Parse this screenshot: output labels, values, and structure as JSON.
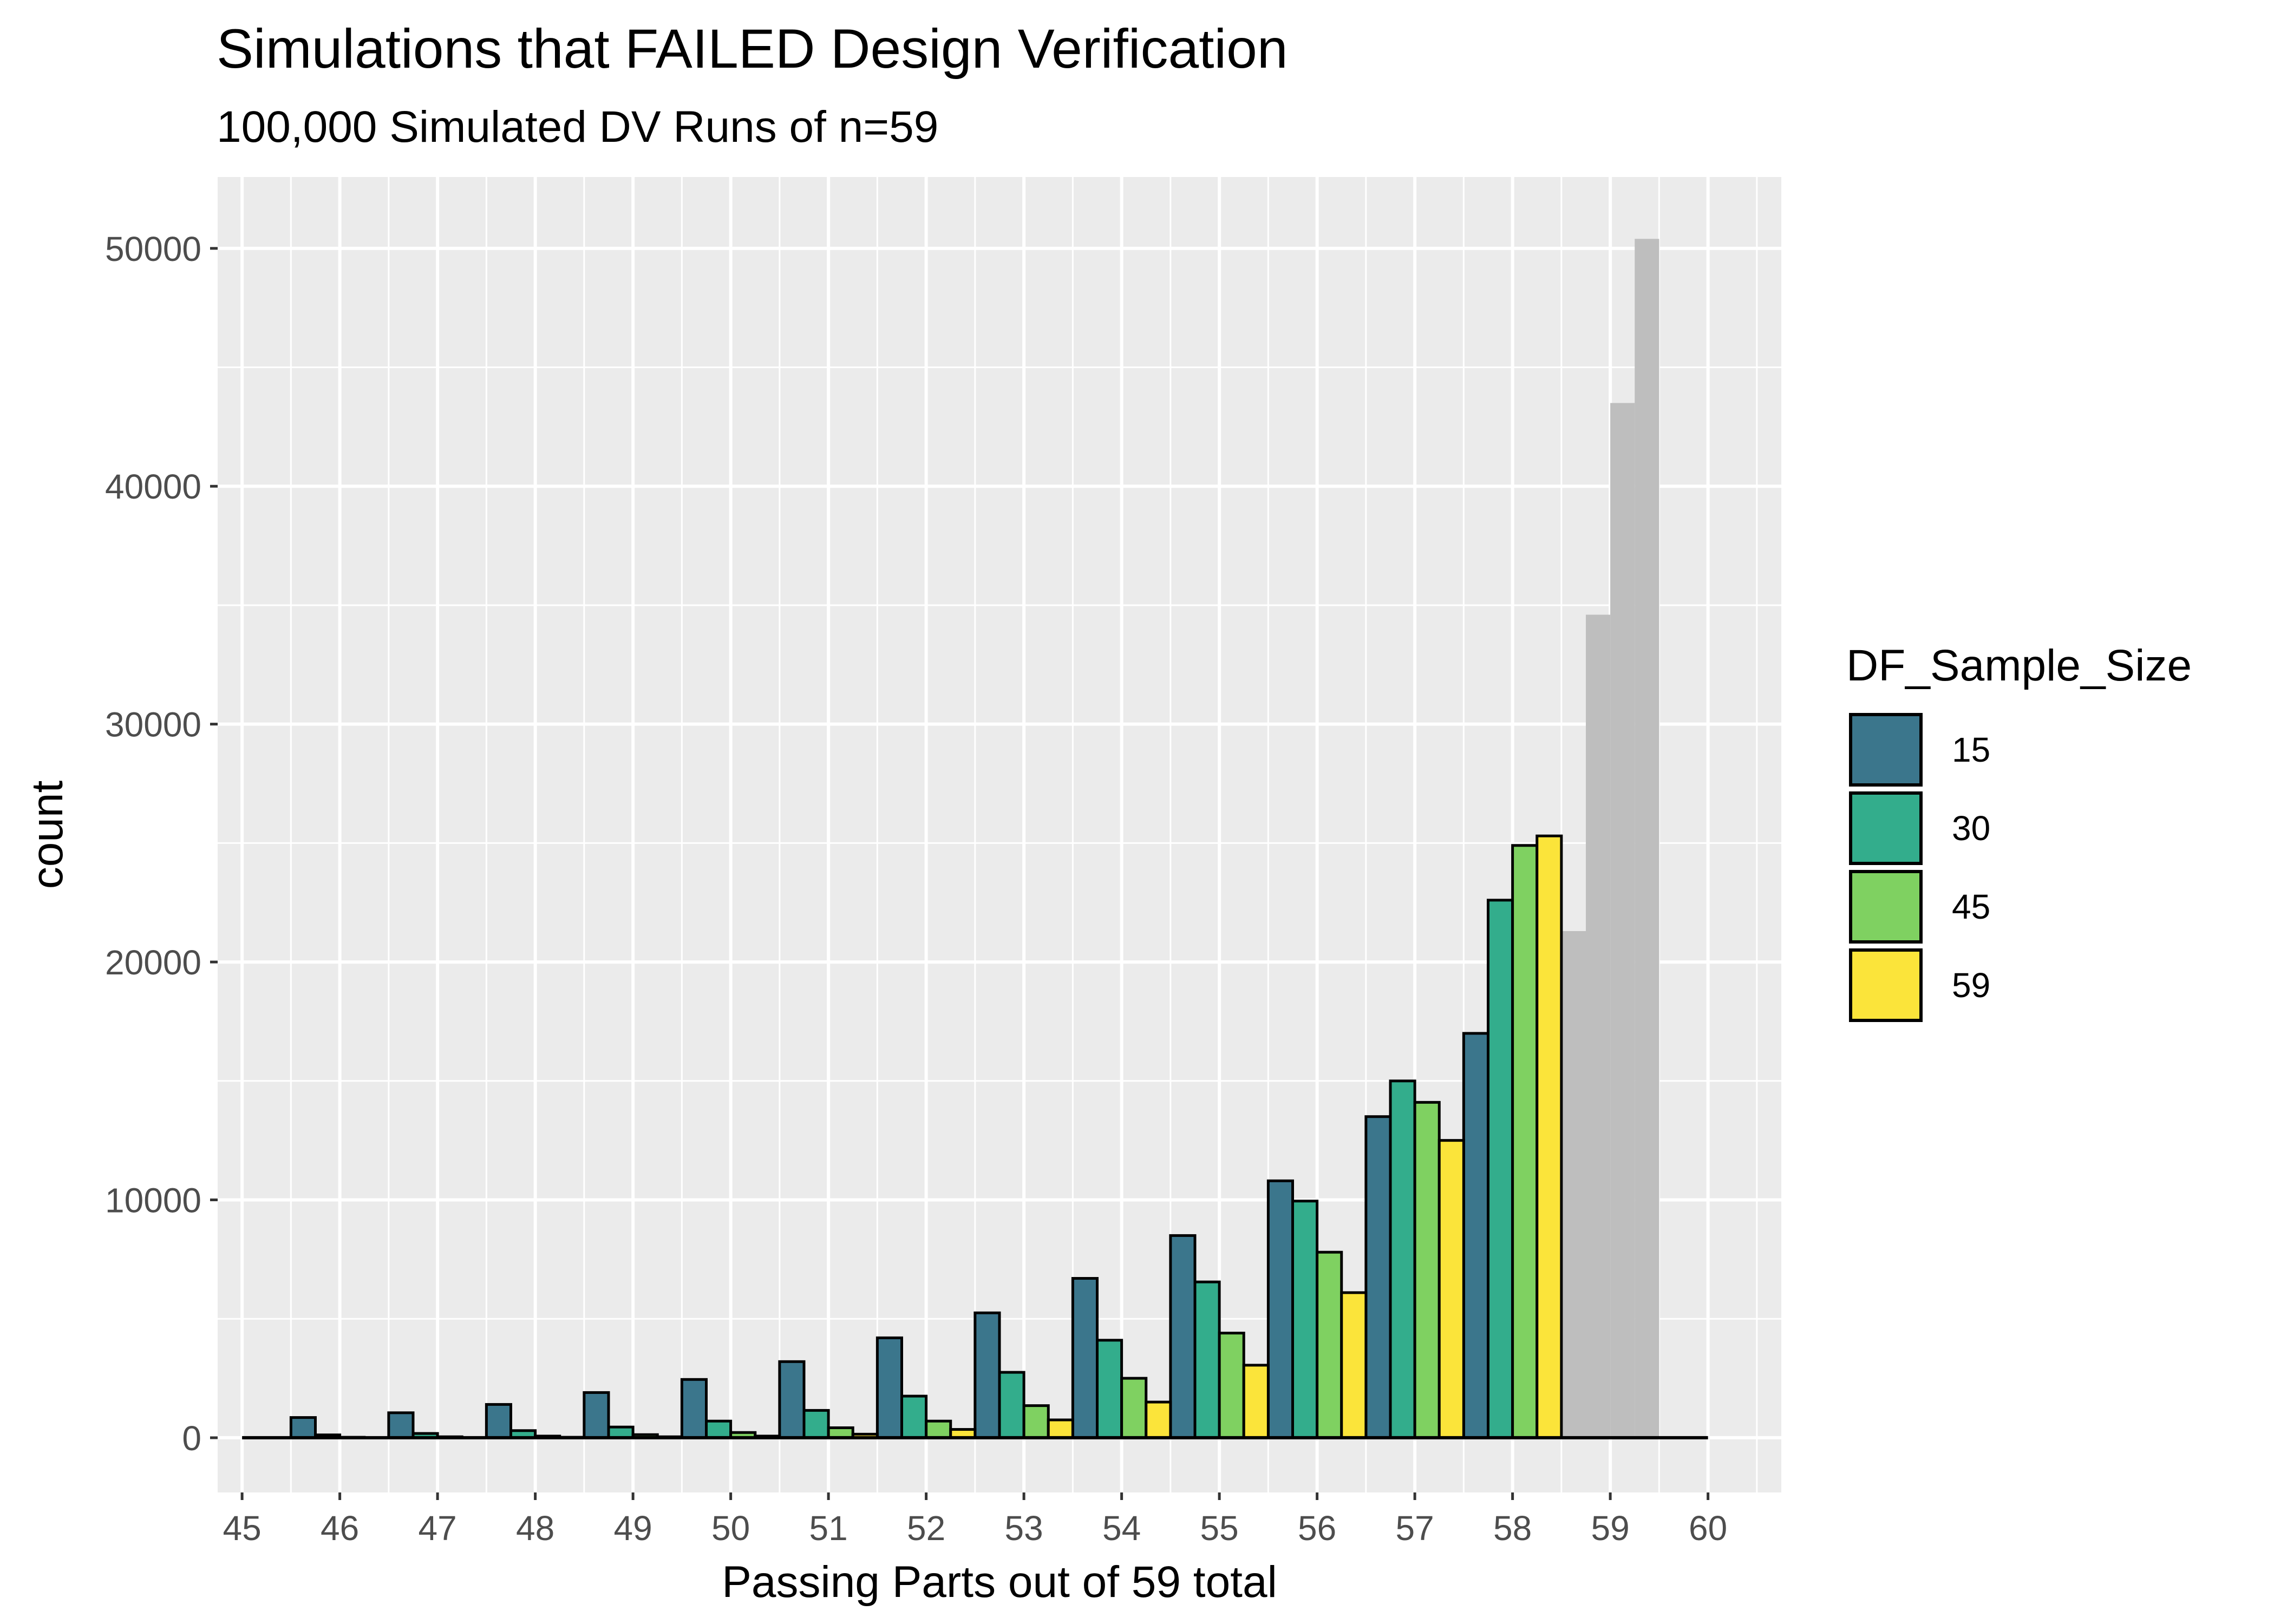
{
  "chart_data": {
    "type": "bar",
    "title": "Simulations that FAILED Design Verification",
    "subtitle": "100,000 Simulated DV Runs of n=59",
    "xlabel": "Passing Parts out of 59 total",
    "ylabel": "count",
    "xlim": [
      44.75,
      60.75
    ],
    "ylim": [
      -2300,
      53000
    ],
    "x_ticks": [
      45,
      46,
      47,
      48,
      49,
      50,
      51,
      52,
      53,
      54,
      55,
      56,
      57,
      58,
      59,
      60
    ],
    "y_ticks": [
      0,
      10000,
      20000,
      30000,
      40000,
      50000
    ],
    "grid": true,
    "legend": {
      "title": "DF_Sample_Size",
      "position": "right"
    },
    "bar_width": 0.25,
    "series": [
      {
        "name": "15",
        "color": "#3b768c",
        "x": [
          45.625,
          46.625,
          47.625,
          48.625,
          49.625,
          50.625,
          51.625,
          52.625,
          53.625,
          54.625,
          55.625,
          56.625,
          57.625
        ],
        "values": [
          850,
          1050,
          1400,
          1900,
          2450,
          3200,
          4200,
          5250,
          6700,
          8500,
          10800,
          13500,
          17000
        ]
      },
      {
        "name": "30",
        "color": "#33ad8c",
        "x": [
          45.875,
          46.875,
          47.875,
          48.875,
          49.875,
          50.875,
          51.875,
          52.875,
          53.875,
          54.875,
          55.875,
          56.875,
          57.875
        ],
        "values": [
          120,
          180,
          300,
          450,
          700,
          1150,
          1750,
          2750,
          4100,
          6550,
          9950,
          15000,
          22600
        ]
      },
      {
        "name": "45",
        "color": "#7fd161",
        "x": [
          46.125,
          47.125,
          48.125,
          49.125,
          50.125,
          51.125,
          52.125,
          53.125,
          54.125,
          55.125,
          56.125,
          57.125,
          58.125
        ],
        "values": [
          20,
          40,
          70,
          130,
          220,
          420,
          700,
          1350,
          2500,
          4400,
          7800,
          14100,
          24900
        ]
      },
      {
        "name": "59",
        "color": "#fbe43a",
        "x": [
          46.375,
          47.375,
          48.375,
          49.375,
          50.375,
          51.375,
          52.375,
          53.375,
          54.375,
          55.375,
          56.375,
          57.375,
          58.375
        ],
        "values": [
          5,
          10,
          20,
          40,
          70,
          150,
          350,
          750,
          1500,
          3050,
          6100,
          12500,
          25300
        ]
      }
    ],
    "passing_bars": {
      "color": "#bebebe",
      "x": [
        58.625,
        58.875,
        59.125,
        59.375
      ],
      "values": [
        21300,
        34600,
        43500,
        50400
      ]
    }
  }
}
